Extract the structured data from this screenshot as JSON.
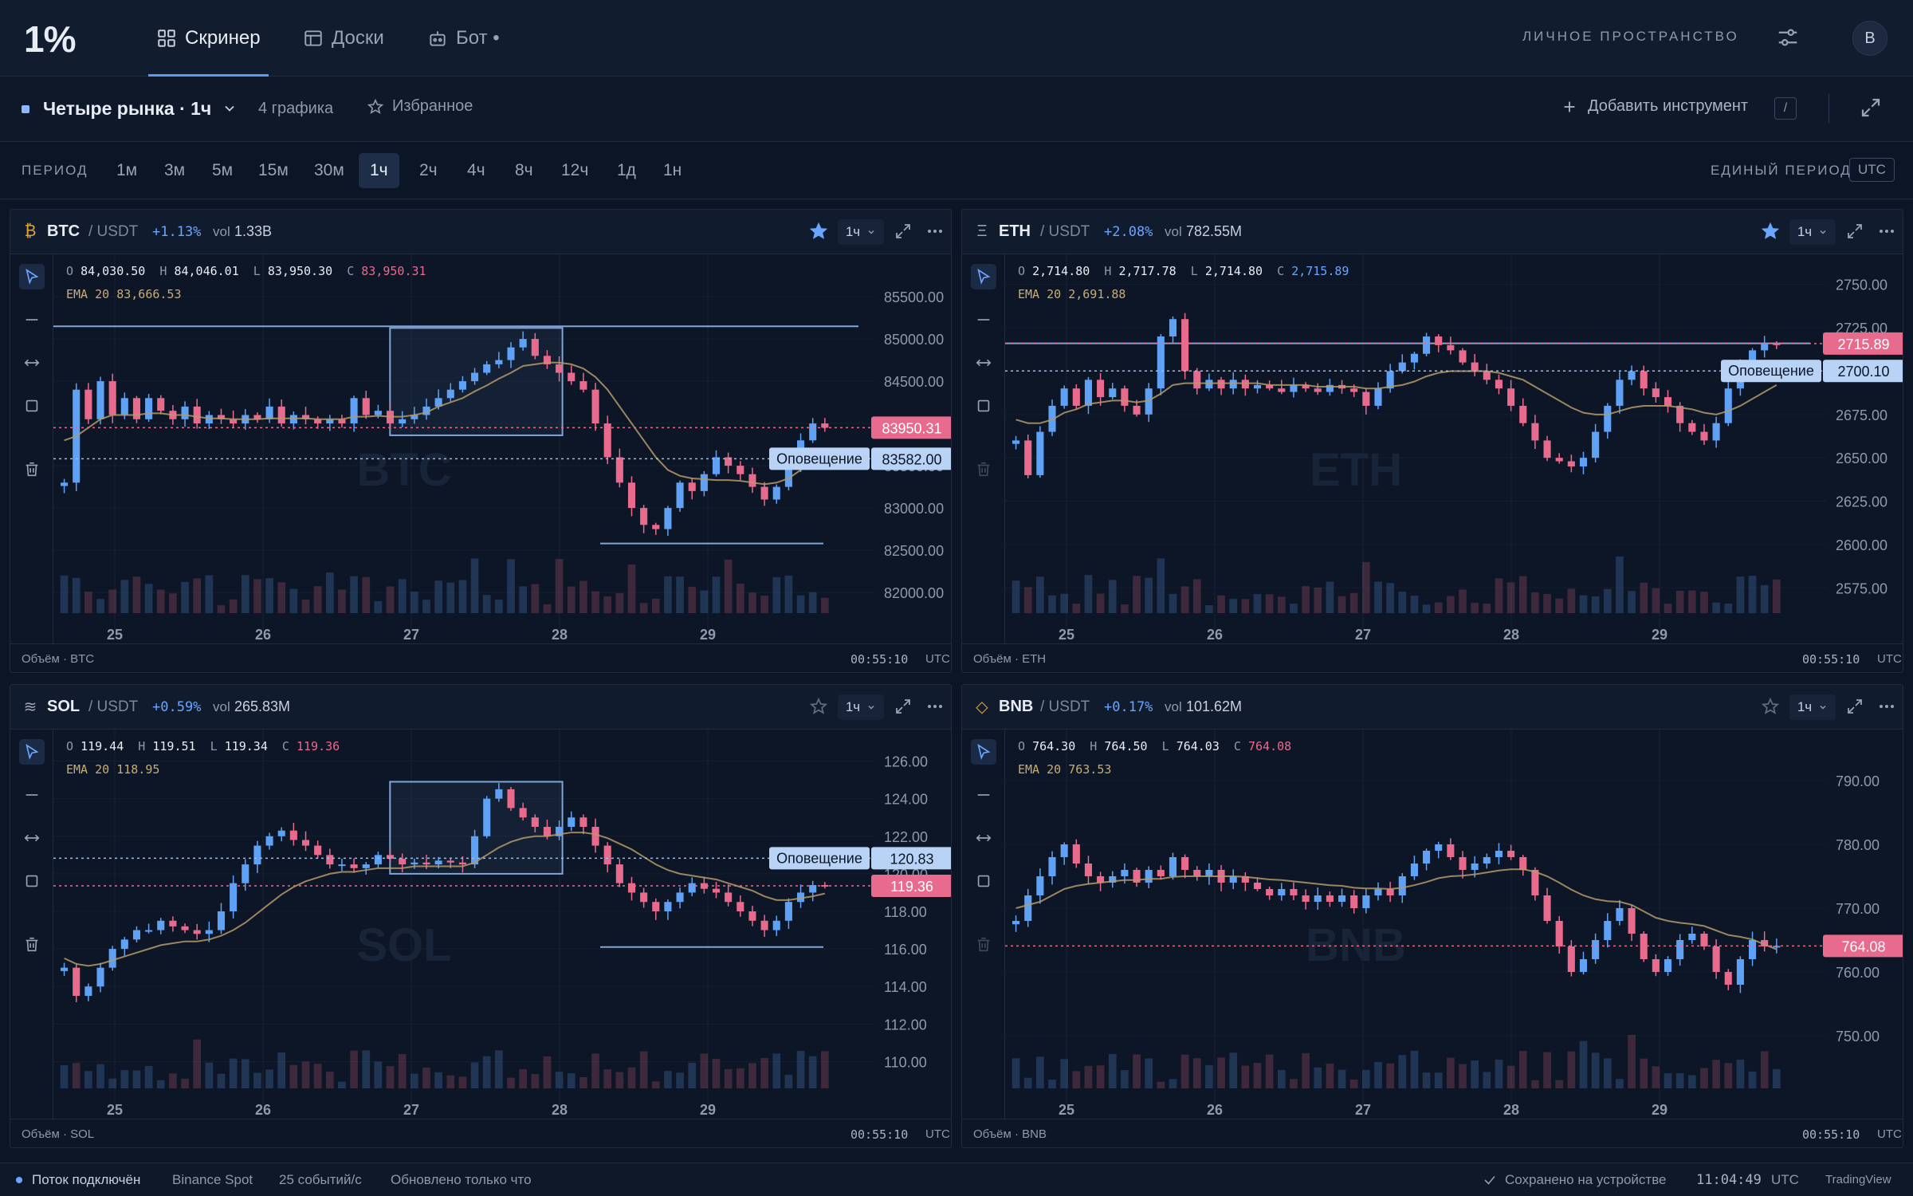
{
  "app": {
    "logo": "1%"
  },
  "nav": {
    "tabs": [
      {
        "label": "Скринер",
        "icon": "grid-icon",
        "active": true
      },
      {
        "label": "Доски",
        "icon": "board-icon",
        "active": false
      },
      {
        "label": "Бот •",
        "icon": "bot-icon",
        "active": false
      }
    ],
    "workspace": "ЛИЧНОЕ ПРОСТРАНСТВО",
    "avatar": "B"
  },
  "board": {
    "title": "Четыре рынка · 1ч",
    "count": "4 графика",
    "favorites": "Избранное",
    "add_instrument": "Добавить инструмент",
    "shortcut": "/"
  },
  "period": {
    "label": "ПЕРИОД",
    "options": [
      "1м",
      "3м",
      "5м",
      "15м",
      "30м",
      "1ч",
      "2ч",
      "4ч",
      "8ч",
      "12ч",
      "1д",
      "1н"
    ],
    "selected": "1ч",
    "unified": "ЕДИНЫЙ ПЕРИОД",
    "tz": "UTC"
  },
  "panels": [
    {
      "id": "btc",
      "symbol": "BTC",
      "quote": "/ USDT",
      "icon": "₿",
      "icon_color": "#e2a33a",
      "change": "+1.13%",
      "vol_label": "vol",
      "vol": "1.33B",
      "starred": true,
      "tf": "1ч",
      "ohlc": {
        "o": "84,030.50",
        "h": "84,046.01",
        "l": "83,950.30",
        "c": "83,950.31"
      },
      "ema": "EMA 20 83,666.53",
      "watermark": "BTC",
      "footer": "Объём · BTC",
      "time": "00:55:10",
      "tz": "UTC",
      "chart_data": {
        "type": "candlestick",
        "x_ticks": [
          "25",
          "26",
          "27",
          "28",
          "29"
        ],
        "y_ticks": [
          "85500.00",
          "85000.00",
          "84500.00",
          "84000.00",
          "83500.00",
          "83000.00",
          "82500.00",
          "82000.00"
        ],
        "ylim": [
          81850,
          85850
        ],
        "last_price": "83950.31",
        "last_value": 83950.31,
        "alert_price": "83582.00",
        "alert_value": 83582,
        "alert_label": "Оповещение",
        "hline_top": 85150,
        "hline_bottom": 82580,
        "box": {
          "x0": 0.41,
          "x1": 0.62,
          "y0": 85130,
          "y1": 83860
        },
        "path": [
          83300,
          84400,
          84050,
          84500,
          84100,
          84300,
          84050,
          84300,
          84150,
          84050,
          84200,
          84000,
          84100,
          84050,
          84000,
          84100,
          84050,
          84200,
          84000,
          84100,
          84050,
          84000,
          84050,
          84000,
          84300,
          84100,
          84150,
          84000,
          84050,
          84100,
          84200,
          84300,
          84400,
          84500,
          84600,
          84700,
          84750,
          84900,
          85000,
          84800,
          84700,
          84600,
          84500,
          84400,
          84000,
          83600,
          83300,
          83000,
          82800,
          82750,
          83000,
          83300,
          83200,
          83400,
          83600,
          83500,
          83400,
          83250,
          83100,
          83250,
          83500,
          83800,
          84000,
          83950
        ],
        "ema_path": [
          83800,
          83850,
          83950,
          84050,
          84100,
          84100,
          84100,
          84120,
          84120,
          84100,
          84100,
          84080,
          84060,
          84060,
          84050,
          84050,
          84050,
          84060,
          84060,
          84060,
          84060,
          84050,
          84050,
          84050,
          84080,
          84080,
          84090,
          84080,
          84080,
          84100,
          84130,
          84200,
          84250,
          84300,
          84380,
          84450,
          84530,
          84600,
          84680,
          84700,
          84720,
          84720,
          84700,
          84650,
          84550,
          84400,
          84200,
          84000,
          83800,
          83600,
          83450,
          83380,
          83350,
          83340,
          83330,
          83330,
          83320,
          83300,
          83280,
          83300,
          83350,
          83450,
          83550,
          83666
        ]
      }
    },
    {
      "id": "eth",
      "symbol": "ETH",
      "quote": "/ USDT",
      "icon": "Ξ",
      "icon_color": "#9aa4b5",
      "change": "+2.08%",
      "vol_label": "vol",
      "vol": "782.55M",
      "starred": true,
      "tf": "1ч",
      "ohlc": {
        "o": "2,714.80",
        "h": "2,717.78",
        "l": "2,714.80",
        "c": "2,715.89"
      },
      "ema": "EMA 20 2,691.88",
      "watermark": "ETH",
      "footer": "Объём · ETH",
      "time": "00:55:10",
      "tz": "UTC",
      "chart_data": {
        "type": "candlestick",
        "x_ticks": [
          "25",
          "26",
          "27",
          "28",
          "29"
        ],
        "y_ticks": [
          "2750.00",
          "2725.00",
          "2700.00",
          "2675.00",
          "2650.00",
          "2625.00",
          "2600.00",
          "2575.00"
        ],
        "ylim": [
          2565,
          2760
        ],
        "last_price": "2715.89",
        "last_value": 2715.89,
        "alert_price": "2700.10",
        "alert_value": 2700.1,
        "alert_label": "Оповещение",
        "hline_top": 2716,
        "hline_bottom": null,
        "box": null,
        "path": [
          2660,
          2640,
          2665,
          2680,
          2690,
          2680,
          2695,
          2685,
          2690,
          2680,
          2675,
          2690,
          2720,
          2730,
          2700,
          2690,
          2695,
          2690,
          2695,
          2690,
          2692,
          2690,
          2688,
          2692,
          2690,
          2688,
          2692,
          2690,
          2688,
          2680,
          2690,
          2700,
          2705,
          2710,
          2720,
          2715,
          2712,
          2705,
          2700,
          2695,
          2690,
          2680,
          2670,
          2660,
          2650,
          2648,
          2645,
          2650,
          2665,
          2680,
          2695,
          2700,
          2690,
          2685,
          2680,
          2670,
          2665,
          2660,
          2670,
          2690,
          2705,
          2712,
          2716,
          2715
        ],
        "ema_path": [
          2672,
          2670,
          2670,
          2672,
          2676,
          2678,
          2681,
          2682,
          2683,
          2683,
          2682,
          2683,
          2687,
          2692,
          2693,
          2693,
          2693,
          2693,
          2693,
          2693,
          2693,
          2692,
          2692,
          2692,
          2692,
          2691,
          2691,
          2691,
          2691,
          2690,
          2690,
          2691,
          2692,
          2694,
          2697,
          2699,
          2700,
          2700,
          2700,
          2700,
          2699,
          2697,
          2695,
          2691,
          2687,
          2683,
          2679,
          2676,
          2675,
          2675,
          2677,
          2679,
          2680,
          2680,
          2680,
          2679,
          2678,
          2676,
          2675,
          2677,
          2680,
          2684,
          2688,
          2692
        ]
      }
    },
    {
      "id": "sol",
      "symbol": "SOL",
      "quote": "/ USDT",
      "icon": "≋",
      "icon_color": "#9aa4b5",
      "change": "+0.59%",
      "vol_label": "vol",
      "vol": "265.83M",
      "starred": false,
      "tf": "1ч",
      "ohlc": {
        "o": "119.44",
        "h": "119.51",
        "l": "119.34",
        "c": "119.36"
      },
      "ema": "EMA 20 118.95",
      "watermark": "SOL",
      "footer": "Объём · SOL",
      "time": "00:55:10",
      "tz": "UTC",
      "chart_data": {
        "type": "candlestick",
        "x_ticks": [
          "25",
          "26",
          "27",
          "28",
          "29"
        ],
        "y_ticks": [
          "126.00",
          "124.00",
          "122.00",
          "120.00",
          "118.00",
          "116.00",
          "114.00",
          "112.00",
          "110.00"
        ],
        "ylim": [
          109,
          127
        ],
        "last_price": "119.36",
        "last_value": 119.36,
        "alert_price": "120.83",
        "alert_value": 120.83,
        "alert_label": "Оповещение",
        "hline_top": null,
        "hline_bottom": 116.1,
        "box": {
          "x0": 0.41,
          "x1": 0.62,
          "y0": 124.9,
          "y1": 120.0
        },
        "path": [
          115,
          113.5,
          114,
          115,
          116,
          116.5,
          117,
          117,
          117.5,
          117.2,
          117,
          116.8,
          117,
          118,
          119.5,
          120.5,
          121.5,
          122,
          122.3,
          121.8,
          121.5,
          121,
          120.5,
          120.5,
          120.3,
          120.5,
          121,
          120.8,
          120.5,
          120.6,
          120.5,
          120.7,
          120.6,
          120.5,
          122,
          124,
          124.5,
          123.5,
          123,
          122.5,
          122,
          122.5,
          123,
          122.5,
          121.5,
          120.5,
          119.5,
          119,
          118.5,
          118,
          118.5,
          119,
          119.5,
          119.2,
          119,
          118.5,
          118,
          117.5,
          117,
          117.5,
          118.5,
          119,
          119.4,
          119.36
        ],
        "ema_path": [
          115.5,
          115.2,
          115.1,
          115.2,
          115.4,
          115.6,
          115.8,
          116,
          116.2,
          116.3,
          116.4,
          116.4,
          116.5,
          116.7,
          117,
          117.4,
          117.9,
          118.4,
          118.9,
          119.3,
          119.6,
          119.8,
          120,
          120.1,
          120.1,
          120.2,
          120.3,
          120.3,
          120.3,
          120.4,
          120.4,
          120.4,
          120.4,
          120.4,
          120.6,
          121,
          121.4,
          121.7,
          121.9,
          122,
          122,
          122.1,
          122.2,
          122.2,
          122.1,
          121.9,
          121.6,
          121.3,
          120.9,
          120.5,
          120.2,
          120,
          119.9,
          119.8,
          119.7,
          119.5,
          119.3,
          119.1,
          118.8,
          118.6,
          118.6,
          118.7,
          118.8,
          118.95
        ]
      }
    },
    {
      "id": "bnb",
      "symbol": "BNB",
      "quote": "/ USDT",
      "icon": "◇",
      "icon_color": "#e2a33a",
      "change": "+0.17%",
      "vol_label": "vol",
      "vol": "101.62M",
      "starred": false,
      "tf": "1ч",
      "ohlc": {
        "o": "764.30",
        "h": "764.50",
        "l": "764.03",
        "c": "764.08"
      },
      "ema": "EMA 20 763.53",
      "watermark": "BNB",
      "footer": "Объём · BNB",
      "time": "00:55:10",
      "tz": "UTC",
      "chart_data": {
        "type": "candlestick",
        "x_ticks": [
          "25",
          "26",
          "27",
          "28",
          "29"
        ],
        "y_ticks": [
          "790.00",
          "780.00",
          "770.00",
          "760.00",
          "750.00"
        ],
        "ylim": [
          743,
          796
        ],
        "last_price": "764.08",
        "last_value": 764.08,
        "alert_price": null,
        "alert_value": null,
        "alert_label": "",
        "hline_top": null,
        "hline_bottom": null,
        "box": null,
        "path": [
          768,
          772,
          775,
          778,
          780,
          777,
          775,
          774,
          775,
          776,
          774,
          776,
          775,
          778,
          776,
          775,
          776,
          774,
          775,
          774,
          773,
          772,
          773,
          772,
          771,
          772,
          771,
          772,
          770,
          772,
          773,
          772,
          775,
          777,
          779,
          780,
          778,
          776,
          777,
          778,
          779,
          778,
          776,
          772,
          768,
          764,
          760,
          762,
          765,
          768,
          770,
          766,
          762,
          760,
          762,
          765,
          766,
          764,
          760,
          758,
          762,
          765,
          764,
          764.08
        ],
        "ema_path": [
          770,
          770.5,
          771,
          772,
          773,
          773.5,
          773.8,
          774,
          774.2,
          774.4,
          774.4,
          774.6,
          774.6,
          774.9,
          775,
          775,
          775,
          775,
          775,
          774.9,
          774.7,
          774.5,
          774.4,
          774.2,
          774,
          773.8,
          773.6,
          773.5,
          773.2,
          773.1,
          773.1,
          773,
          773.2,
          773.6,
          774.1,
          774.7,
          775,
          775.1,
          775.3,
          775.6,
          775.9,
          776.1,
          776.1,
          775.7,
          775,
          774,
          772.9,
          772,
          771.4,
          771.1,
          771,
          770.5,
          769.5,
          768.5,
          768,
          767.7,
          767.5,
          767.2,
          766.5,
          765.8,
          765.5,
          765.1,
          764.3,
          763.53
        ]
      }
    }
  ],
  "status": {
    "stream": "Поток подключён",
    "source": "Binance Spot",
    "rate": "25 событий/с",
    "updated": "Обновлено только что",
    "saved": "Сохранено на устройстве",
    "clock": "11:04:49",
    "clock_tz": "UTC",
    "brand": "TradingView"
  },
  "colors": {
    "up": "#5fa2f5",
    "down": "#e86b8e",
    "ema": "#b49a6b",
    "accent": "#5b9bf0"
  }
}
